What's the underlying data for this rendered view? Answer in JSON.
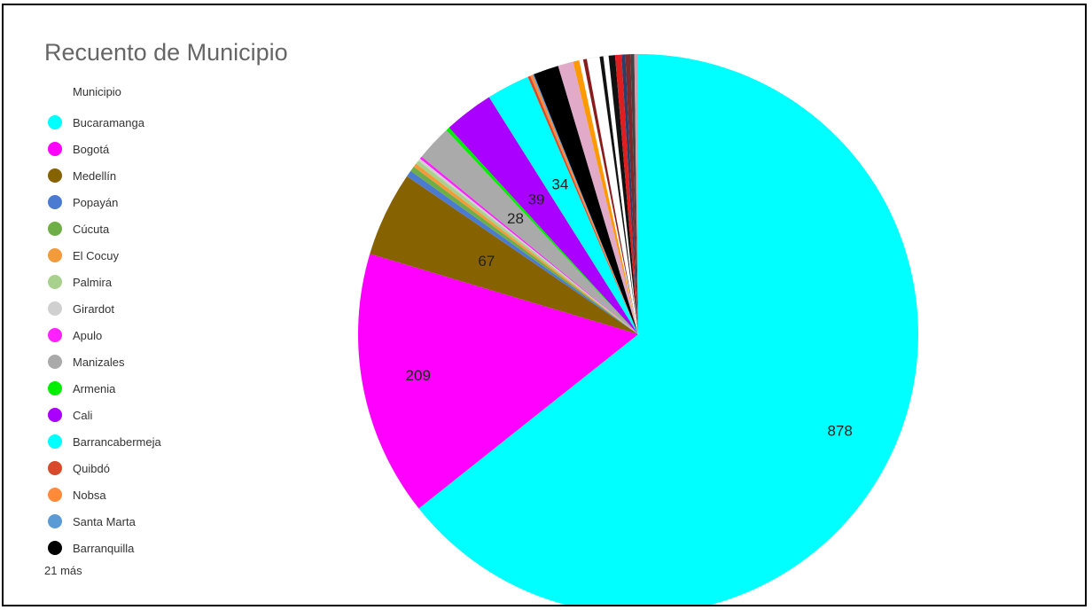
{
  "chart_data": {
    "type": "pie",
    "title": "Recuento de Municipio",
    "legend_title": "Municipio",
    "legend_position": "left",
    "more_label": "21 más",
    "slices": [
      {
        "label": "Bucaramanga",
        "value": 878,
        "color": "#00ffff",
        "show_value": true
      },
      {
        "label": "Bogotá",
        "value": 209,
        "color": "#ff00ff",
        "show_value": true
      },
      {
        "label": "Medellín",
        "value": 67,
        "color": "#876200",
        "show_value": true
      },
      {
        "label": "Popayán",
        "value": 5,
        "color": "#4a7bd0",
        "show_value": false
      },
      {
        "label": "Cúcuta",
        "value": 4,
        "color": "#6fad47",
        "show_value": false
      },
      {
        "label": "El Cocuy",
        "value": 3,
        "color": "#f39a3a",
        "show_value": false
      },
      {
        "label": "Palmira",
        "value": 3,
        "color": "#a9d18e",
        "show_value": false
      },
      {
        "label": "Girardot",
        "value": 2,
        "color": "#d0d0d0",
        "show_value": false
      },
      {
        "label": "Apulo",
        "value": 2,
        "color": "#ff22ff",
        "show_value": false
      },
      {
        "label": "Manizales",
        "value": 28,
        "color": "#aaaaaa",
        "show_value": true
      },
      {
        "label": "Armenia",
        "value": 3,
        "color": "#00ee00",
        "show_value": false
      },
      {
        "label": "Cali",
        "value": 39,
        "color": "#aa00ff",
        "show_value": true
      },
      {
        "label": "Barrancabermeja",
        "value": 34,
        "color": "#00ffff",
        "show_value": true
      },
      {
        "label": "Quibdó",
        "value": 2,
        "color": "#d84a2a",
        "show_value": false
      },
      {
        "label": "Nobsa",
        "value": 2,
        "color": "#ff8a3a",
        "show_value": false
      },
      {
        "label": "Santa Marta",
        "value": 1,
        "color": "#5b9bd5",
        "show_value": false
      },
      {
        "label": "Barranquilla",
        "value": 20,
        "color": "#000000",
        "show_value": false
      },
      {
        "label": "",
        "value": 12,
        "color": "#e0aac8",
        "show_value": false
      },
      {
        "label": "",
        "value": 5,
        "color": "#ff9900",
        "show_value": false
      },
      {
        "label": "",
        "value": 3,
        "color": "#ffffff",
        "show_value": false
      },
      {
        "label": "",
        "value": 3,
        "color": "#8b1a1a",
        "show_value": false
      },
      {
        "label": "",
        "value": 10,
        "color": "#ffffff",
        "show_value": false
      },
      {
        "label": "",
        "value": 3,
        "color": "#111111",
        "show_value": false
      },
      {
        "label": "",
        "value": 4,
        "color": "#ffffff",
        "show_value": false
      },
      {
        "label": "",
        "value": 5,
        "color": "#111111",
        "show_value": false
      },
      {
        "label": "",
        "value": 5,
        "color": "#e01e1e",
        "show_value": false
      },
      {
        "label": "",
        "value": 3,
        "color": "#2b3f6b",
        "show_value": false
      },
      {
        "label": "",
        "value": 4,
        "color": "#7a2a2a",
        "show_value": false
      },
      {
        "label": "",
        "value": 3,
        "color": "#444444",
        "show_value": false
      },
      {
        "label": "",
        "value": 3,
        "color": "#d0a0b0",
        "show_value": false
      }
    ]
  }
}
